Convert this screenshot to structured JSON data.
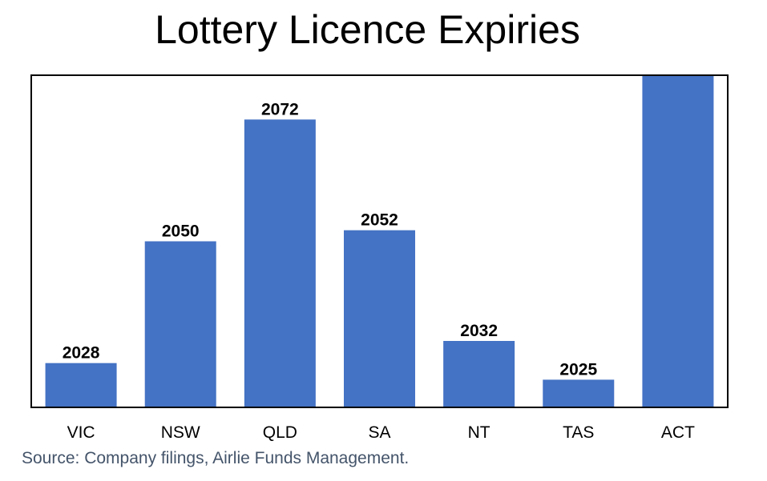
{
  "chart_data": {
    "type": "bar",
    "title": "Lottery Licence Expiries",
    "categories": [
      "VIC",
      "NSW",
      "QLD",
      "SA",
      "NT",
      "TAS",
      "ACT"
    ],
    "values": [
      2028,
      2050,
      2072,
      2052,
      2032,
      2025,
      2080
    ],
    "data_labels": [
      "2028",
      "2050",
      "2072",
      "2052",
      "2032",
      "2025",
      ""
    ],
    "ylim": [
      2020,
      2080
    ],
    "bar_color": "#4472c4",
    "grid": false,
    "legend": "none"
  },
  "source": "Source: Company filings, Airlie Funds Management."
}
